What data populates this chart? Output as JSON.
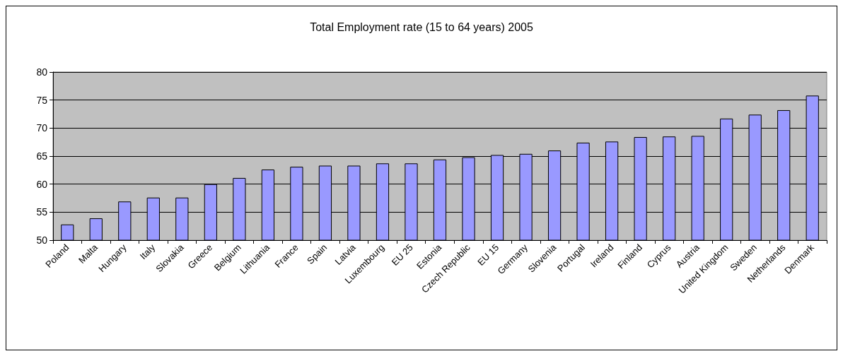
{
  "chart_data": {
    "type": "bar",
    "title": "Total Employment rate (15 to 64 years) 2005",
    "categories": [
      "Poland",
      "Malta",
      "Hungary",
      "Italy",
      "Slovakia",
      "Greece",
      "Belgium",
      "Lithuania",
      "France",
      "Spain",
      "Latvia",
      "Luxembourg",
      "EU 25",
      "Estonia",
      "Czech Republic",
      "EU 15",
      "Germany",
      "Slovenia",
      "Portugal",
      "Ireland",
      "Finland",
      "Cyprus",
      "Austria",
      "United Kingdom",
      "Sweden",
      "Netherlands",
      "Denmark"
    ],
    "values": [
      52.8,
      53.9,
      56.9,
      57.6,
      57.6,
      60.0,
      61.1,
      62.6,
      63.1,
      63.3,
      63.3,
      63.7,
      63.7,
      64.4,
      64.8,
      65.2,
      65.4,
      66.0,
      67.4,
      67.6,
      68.4,
      68.5,
      68.6,
      71.7,
      72.4,
      73.2,
      75.8
    ],
    "color": "#9999ff",
    "ylim": [
      50,
      80
    ],
    "yticks": [
      50,
      55,
      60,
      65,
      70,
      75,
      80
    ],
    "grid": "y"
  }
}
